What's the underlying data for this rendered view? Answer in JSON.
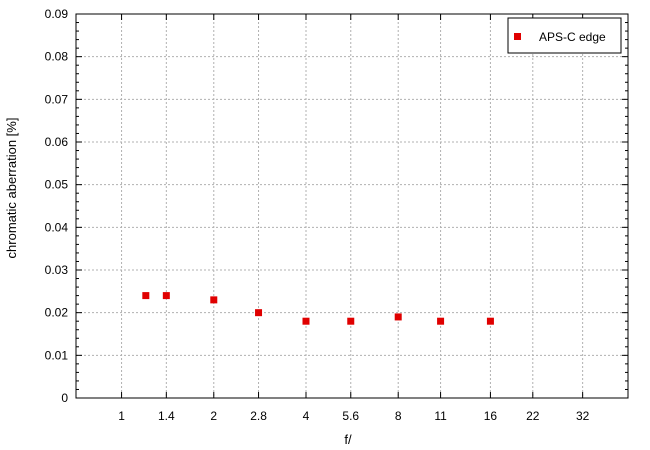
{
  "chart_data": {
    "type": "scatter",
    "xlabel": "f/",
    "ylabel": "chromatic aberration [%]",
    "x_scale": "log2",
    "x_ticks": [
      {
        "value": 1,
        "label": "1"
      },
      {
        "value": 1.4,
        "label": "1.4"
      },
      {
        "value": 2,
        "label": "2"
      },
      {
        "value": 2.8,
        "label": "2.8"
      },
      {
        "value": 4,
        "label": "4"
      },
      {
        "value": 5.6,
        "label": "5.6"
      },
      {
        "value": 8,
        "label": "8"
      },
      {
        "value": 11,
        "label": "11"
      },
      {
        "value": 16,
        "label": "16"
      },
      {
        "value": 22,
        "label": "22"
      },
      {
        "value": 32,
        "label": "32"
      }
    ],
    "xlim": [
      0.71,
      45
    ],
    "ylim": [
      0,
      0.09
    ],
    "y_ticks": [
      "0",
      "0.01",
      "0.02",
      "0.03",
      "0.04",
      "0.05",
      "0.06",
      "0.07",
      "0.08",
      "0.09"
    ],
    "grid": true,
    "legend_position": "top-right",
    "series": [
      {
        "name": "APS-C edge",
        "color": "#e00000",
        "marker": "square",
        "points": [
          {
            "x": 1.2,
            "y": 0.024
          },
          {
            "x": 1.4,
            "y": 0.024
          },
          {
            "x": 2,
            "y": 0.023
          },
          {
            "x": 2.8,
            "y": 0.02
          },
          {
            "x": 4,
            "y": 0.018
          },
          {
            "x": 5.6,
            "y": 0.018
          },
          {
            "x": 8,
            "y": 0.019
          },
          {
            "x": 11,
            "y": 0.018
          },
          {
            "x": 16,
            "y": 0.018
          }
        ]
      }
    ]
  }
}
